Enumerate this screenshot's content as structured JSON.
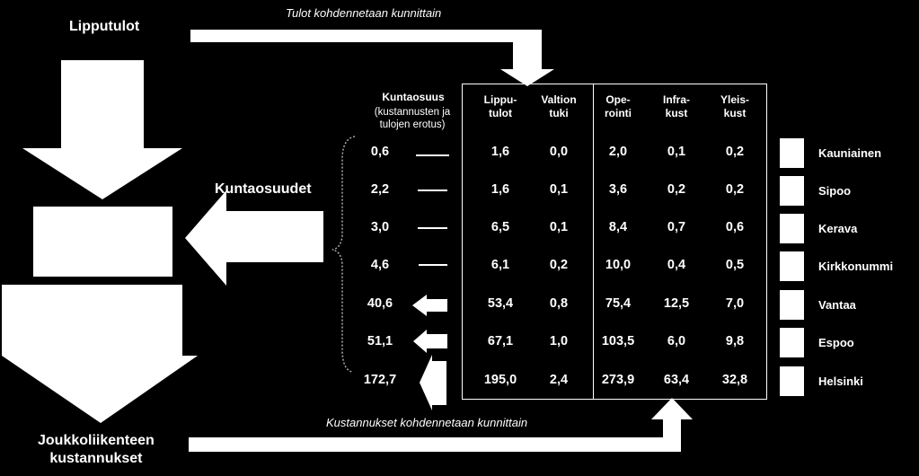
{
  "labels": {
    "lipputulot": "Lipputulot",
    "tulot_kohdennetaan": "Tulot kohdennetaan kunnittain",
    "kuntaosuudet": "Kuntaosuudet",
    "kustannukset_kohdennetaan": "Kustannukset kohdennetaan kunnittain",
    "joukkoliikenne": "Joukkoliikenteen\nkustannukset"
  },
  "headers": {
    "kuntaosuus_title": "Kuntaosuus",
    "kuntaosuus_note": "(kustannusten ja\ntulojen erotus)",
    "lipputulot": "Lippu-\ntulot",
    "valtiontuki": "Valtion\ntuki",
    "operointi": "Ope-\nrointi",
    "infrakust": "Infra-\nkust",
    "yleiskust": "Yleis-\nkust"
  },
  "rows": [
    {
      "municipality": "Kauniainen",
      "kuntaosuus": "0,6",
      "lipputulot": "1,6",
      "valtiontuki": "0,0",
      "operointi": "2,0",
      "infrakust": "0,1",
      "yleiskust": "0,2",
      "arrow": "line"
    },
    {
      "municipality": "Sipoo",
      "kuntaosuus": "2,2",
      "lipputulot": "1,6",
      "valtiontuki": "0,1",
      "operointi": "3,6",
      "infrakust": "0,2",
      "yleiskust": "0,2",
      "arrow": "line"
    },
    {
      "municipality": "Kerava",
      "kuntaosuus": "3,0",
      "lipputulot": "6,5",
      "valtiontuki": "0,1",
      "operointi": "8,4",
      "infrakust": "0,7",
      "yleiskust": "0,6",
      "arrow": "line"
    },
    {
      "municipality": "Kirkkonummi",
      "kuntaosuus": "4,6",
      "lipputulot": "6,1",
      "valtiontuki": "0,2",
      "operointi": "10,0",
      "infrakust": "0,4",
      "yleiskust": "0,5",
      "arrow": "line"
    },
    {
      "municipality": "Vantaa",
      "kuntaosuus": "40,6",
      "lipputulot": "53,4",
      "valtiontuki": "0,8",
      "operointi": "75,4",
      "infrakust": "12,5",
      "yleiskust": "7,0",
      "arrow": "small"
    },
    {
      "municipality": "Espoo",
      "kuntaosuus": "51,1",
      "lipputulot": "67,1",
      "valtiontuki": "1,0",
      "operointi": "103,5",
      "infrakust": "6,0",
      "yleiskust": "9,8",
      "arrow": "small"
    },
    {
      "municipality": "Helsinki",
      "kuntaosuus": "172,7",
      "lipputulot": "195,0",
      "valtiontuki": "2,4",
      "operointi": "273,9",
      "infrakust": "63,4",
      "yleiskust": "32,8",
      "arrow": "big"
    }
  ],
  "colors": {
    "background": "#000000",
    "foreground": "#ffffff"
  }
}
